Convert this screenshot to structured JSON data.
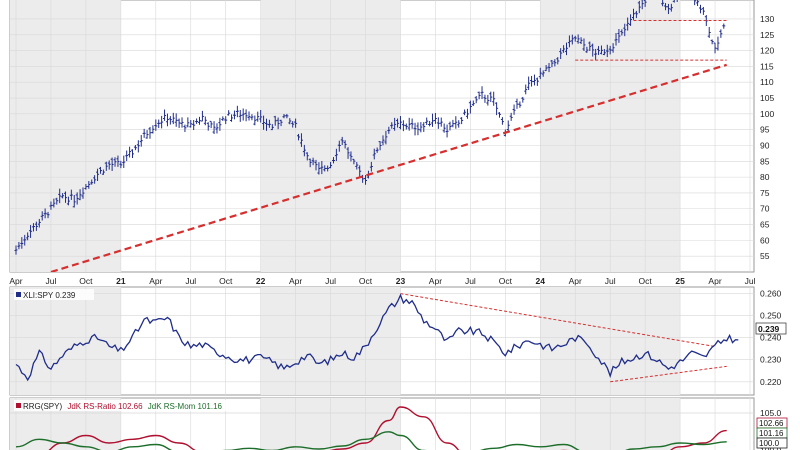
{
  "colors": {
    "price_bar": "#1f2d8a",
    "ratio_line": "#1f2d8a",
    "rs_ratio_line": "#b0102f",
    "rs_mom_line": "#1d6e2a",
    "trendline": "#d62f2f",
    "panel_bg": "#ffffff",
    "shade_bg": "#ececec",
    "grid": "#d8d8d8"
  },
  "chart_data": [
    {
      "type": "ohlc",
      "title": "",
      "x_start": "2020-04",
      "x_end": "2025-07",
      "x_tick_labels": [
        {
          "date": "2020-04",
          "label": "Apr"
        },
        {
          "date": "2020-07",
          "label": "Jul"
        },
        {
          "date": "2020-10",
          "label": "Oct"
        },
        {
          "date": "2021-01",
          "label": "21"
        },
        {
          "date": "2021-04",
          "label": "Apr"
        },
        {
          "date": "2021-07",
          "label": "Jul"
        },
        {
          "date": "2021-10",
          "label": "Oct"
        },
        {
          "date": "2022-01",
          "label": "22"
        },
        {
          "date": "2022-04",
          "label": "Apr"
        },
        {
          "date": "2022-07",
          "label": "Jul"
        },
        {
          "date": "2022-10",
          "label": "Oct"
        },
        {
          "date": "2023-01",
          "label": "23"
        },
        {
          "date": "2023-04",
          "label": "Apr"
        },
        {
          "date": "2023-07",
          "label": "Jul"
        },
        {
          "date": "2023-10",
          "label": "Oct"
        },
        {
          "date": "2024-01",
          "label": "24"
        },
        {
          "date": "2024-04",
          "label": "Apr"
        },
        {
          "date": "2024-07",
          "label": "Jul"
        },
        {
          "date": "2024-10",
          "label": "Oct"
        },
        {
          "date": "2025-01",
          "label": "25"
        },
        {
          "date": "2025-04",
          "label": "Apr"
        },
        {
          "date": "2025-07",
          "label": "Jul"
        }
      ],
      "y_ticks": [
        55,
        60,
        65,
        70,
        75,
        80,
        85,
        90,
        95,
        100,
        105,
        110,
        115,
        120,
        125,
        130
      ],
      "ylim": [
        50,
        136
      ],
      "price_anchors": [
        [
          "2020-04",
          57
        ],
        [
          "2020-05",
          62
        ],
        [
          "2020-06",
          66
        ],
        [
          "2020-07",
          70
        ],
        [
          "2020-08",
          74
        ],
        [
          "2020-09",
          73
        ],
        [
          "2020-10",
          77
        ],
        [
          "2020-11",
          81
        ],
        [
          "2020-12",
          84
        ],
        [
          "2021-01",
          84
        ],
        [
          "2021-02",
          88
        ],
        [
          "2021-03",
          93
        ],
        [
          "2021-04",
          97
        ],
        [
          "2021-05",
          99
        ],
        [
          "2021-06",
          97
        ],
        [
          "2021-07",
          96
        ],
        [
          "2021-08",
          99
        ],
        [
          "2021-09",
          95
        ],
        [
          "2021-10",
          99
        ],
        [
          "2021-11",
          100
        ],
        [
          "2021-12",
          100
        ],
        [
          "2022-01",
          98
        ],
        [
          "2022-02",
          96
        ],
        [
          "2022-03",
          99
        ],
        [
          "2022-04",
          96
        ],
        [
          "2022-05",
          87
        ],
        [
          "2022-06",
          82
        ],
        [
          "2022-07",
          84
        ],
        [
          "2022-08",
          92
        ],
        [
          "2022-09",
          84
        ],
        [
          "2022-10",
          79
        ],
        [
          "2022-11",
          89
        ],
        [
          "2022-12",
          95
        ],
        [
          "2023-01",
          97
        ],
        [
          "2023-02",
          96
        ],
        [
          "2023-03",
          96
        ],
        [
          "2023-04",
          99
        ],
        [
          "2023-05",
          95
        ],
        [
          "2023-06",
          97
        ],
        [
          "2023-07",
          102
        ],
        [
          "2023-08",
          106
        ],
        [
          "2023-09",
          104
        ],
        [
          "2023-10",
          95
        ],
        [
          "2023-11",
          102
        ],
        [
          "2023-12",
          109
        ],
        [
          "2024-01",
          112
        ],
        [
          "2024-02",
          115
        ],
        [
          "2024-03",
          120
        ],
        [
          "2024-04",
          124
        ],
        [
          "2024-05",
          121
        ],
        [
          "2024-06",
          119
        ],
        [
          "2024-07",
          121
        ],
        [
          "2024-08",
          125
        ],
        [
          "2024-09",
          131
        ],
        [
          "2024-10",
          136
        ],
        [
          "2024-11",
          139
        ],
        [
          "2024-12",
          133
        ],
        [
          "2025-01",
          139
        ],
        [
          "2025-02",
          138
        ],
        [
          "2025-03",
          132
        ],
        [
          "2025-04",
          120
        ],
        [
          "2025-05",
          131
        ]
      ],
      "trendlines": [
        {
          "style": "dashed-bold",
          "from": [
            "2020-07",
            50
          ],
          "to": [
            "2025-05",
            115.5
          ]
        },
        {
          "style": "dashed-thin",
          "from": [
            "2024-04",
            117
          ],
          "to": [
            "2025-05",
            117
          ]
        },
        {
          "style": "dashed-thin",
          "from": [
            "2024-09",
            129.5
          ],
          "to": [
            "2025-05",
            129.5
          ]
        }
      ]
    },
    {
      "type": "line",
      "label": "XLI:SPY 0.239",
      "last_value": "0.239",
      "y_ticks": [
        0.22,
        0.23,
        0.24,
        0.25,
        0.26
      ],
      "y_tick_labels": [
        "0.220",
        "0.230",
        "0.240",
        "0.250",
        "0.260"
      ],
      "ylim": [
        0.214,
        0.263
      ],
      "series": [
        {
          "values": [
            [
              "2020-04",
              0.228
            ],
            [
              "2020-05",
              0.222
            ],
            [
              "2020-06",
              0.233
            ],
            [
              "2020-07",
              0.226
            ],
            [
              "2020-08",
              0.232
            ],
            [
              "2020-09",
              0.236
            ],
            [
              "2020-10",
              0.239
            ],
            [
              "2020-11",
              0.24
            ],
            [
              "2020-12",
              0.236
            ],
            [
              "2021-01",
              0.234
            ],
            [
              "2021-02",
              0.24
            ],
            [
              "2021-03",
              0.248
            ],
            [
              "2021-04",
              0.247
            ],
            [
              "2021-05",
              0.249
            ],
            [
              "2021-06",
              0.24
            ],
            [
              "2021-07",
              0.236
            ],
            [
              "2021-08",
              0.237
            ],
            [
              "2021-09",
              0.234
            ],
            [
              "2021-10",
              0.232
            ],
            [
              "2021-11",
              0.23
            ],
            [
              "2021-12",
              0.23
            ],
            [
              "2022-01",
              0.231
            ],
            [
              "2022-02",
              0.229
            ],
            [
              "2022-03",
              0.226
            ],
            [
              "2022-04",
              0.229
            ],
            [
              "2022-05",
              0.232
            ],
            [
              "2022-06",
              0.228
            ],
            [
              "2022-07",
              0.23
            ],
            [
              "2022-08",
              0.233
            ],
            [
              "2022-09",
              0.231
            ],
            [
              "2022-10",
              0.236
            ],
            [
              "2022-11",
              0.245
            ],
            [
              "2022-12",
              0.253
            ],
            [
              "2023-01",
              0.258
            ],
            [
              "2023-02",
              0.256
            ],
            [
              "2023-03",
              0.248
            ],
            [
              "2023-04",
              0.244
            ],
            [
              "2023-05",
              0.238
            ],
            [
              "2023-06",
              0.243
            ],
            [
              "2023-07",
              0.243
            ],
            [
              "2023-08",
              0.242
            ],
            [
              "2023-09",
              0.238
            ],
            [
              "2023-10",
              0.233
            ],
            [
              "2023-11",
              0.236
            ],
            [
              "2023-12",
              0.239
            ],
            [
              "2024-01",
              0.237
            ],
            [
              "2024-02",
              0.235
            ],
            [
              "2024-03",
              0.237
            ],
            [
              "2024-04",
              0.24
            ],
            [
              "2024-05",
              0.238
            ],
            [
              "2024-06",
              0.231
            ],
            [
              "2024-07",
              0.224
            ],
            [
              "2024-08",
              0.229
            ],
            [
              "2024-09",
              0.231
            ],
            [
              "2024-10",
              0.233
            ],
            [
              "2024-11",
              0.23
            ],
            [
              "2024-12",
              0.226
            ],
            [
              "2025-01",
              0.229
            ],
            [
              "2025-02",
              0.233
            ],
            [
              "2025-03",
              0.231
            ],
            [
              "2025-04",
              0.236
            ],
            [
              "2025-05",
              0.24
            ],
            [
              "2025-06",
              0.239
            ]
          ]
        }
      ],
      "trendlines": [
        {
          "style": "dashed-thin",
          "from": [
            "2023-01",
            0.26
          ],
          "to": [
            "2025-04",
            0.236
          ]
        },
        {
          "style": "dashed-thin",
          "from": [
            "2024-07",
            0.22
          ],
          "to": [
            "2025-05",
            0.227
          ]
        }
      ]
    },
    {
      "type": "line",
      "legend_prefix": "RRG(SPY)",
      "y_ticks": [
        100.0,
        105.0
      ],
      "y_tick_labels": [
        "100.0",
        "105.0"
      ],
      "ylim": [
        99.0,
        107.0
      ],
      "value_labels": [
        "102.66",
        "101.16",
        "100.0"
      ],
      "series": [
        {
          "name": "JdK RS-Ratio 102.66",
          "values": [
            [
              "2020-04",
              98.5
            ],
            [
              "2020-06",
              99.5
            ],
            [
              "2020-08",
              101.0
            ],
            [
              "2020-10",
              102.0
            ],
            [
              "2020-12",
              101.0
            ],
            [
              "2021-02",
              101.5
            ],
            [
              "2021-04",
              102.0
            ],
            [
              "2021-06",
              101.0
            ],
            [
              "2021-08",
              99.8
            ],
            [
              "2021-10",
              99.5
            ],
            [
              "2021-12",
              99.7
            ],
            [
              "2022-02",
              99.2
            ],
            [
              "2022-04",
              99.5
            ],
            [
              "2022-06",
              99.8
            ],
            [
              "2022-08",
              100.2
            ],
            [
              "2022-10",
              101.0
            ],
            [
              "2022-12",
              104.0
            ],
            [
              "2023-01",
              105.8
            ],
            [
              "2023-03",
              104.5
            ],
            [
              "2023-05",
              101.0
            ],
            [
              "2023-07",
              99.0
            ],
            [
              "2023-09",
              98.0
            ],
            [
              "2023-11",
              98.5
            ],
            [
              "2024-01",
              99.5
            ],
            [
              "2024-03",
              100.0
            ],
            [
              "2024-05",
              99.8
            ],
            [
              "2024-07",
              99.0
            ],
            [
              "2024-09",
              98.5
            ],
            [
              "2024-11",
              99.0
            ],
            [
              "2025-01",
              100.5
            ],
            [
              "2025-03",
              101.0
            ],
            [
              "2025-05",
              102.66
            ]
          ]
        },
        {
          "name": "JdK RS-Mom 101.16",
          "values": [
            [
              "2020-04",
              100.5
            ],
            [
              "2020-06",
              101.5
            ],
            [
              "2020-08",
              101.0
            ],
            [
              "2020-10",
              100.5
            ],
            [
              "2020-12",
              99.8
            ],
            [
              "2021-02",
              100.5
            ],
            [
              "2021-04",
              100.8
            ],
            [
              "2021-06",
              99.8
            ],
            [
              "2021-08",
              99.5
            ],
            [
              "2021-10",
              100.0
            ],
            [
              "2021-12",
              100.3
            ],
            [
              "2022-02",
              100.0
            ],
            [
              "2022-04",
              100.5
            ],
            [
              "2022-06",
              100.2
            ],
            [
              "2022-08",
              100.6
            ],
            [
              "2022-10",
              101.5
            ],
            [
              "2022-12",
              102.5
            ],
            [
              "2023-01",
              102.0
            ],
            [
              "2023-03",
              100.0
            ],
            [
              "2023-05",
              99.0
            ],
            [
              "2023-07",
              99.8
            ],
            [
              "2023-09",
              100.3
            ],
            [
              "2023-11",
              100.8
            ],
            [
              "2024-01",
              100.5
            ],
            [
              "2024-03",
              100.8
            ],
            [
              "2024-05",
              99.8
            ],
            [
              "2024-07",
              99.2
            ],
            [
              "2024-09",
              100.2
            ],
            [
              "2024-11",
              100.5
            ],
            [
              "2025-01",
              101.0
            ],
            [
              "2025-03",
              100.8
            ],
            [
              "2025-05",
              101.16
            ]
          ]
        }
      ]
    }
  ]
}
